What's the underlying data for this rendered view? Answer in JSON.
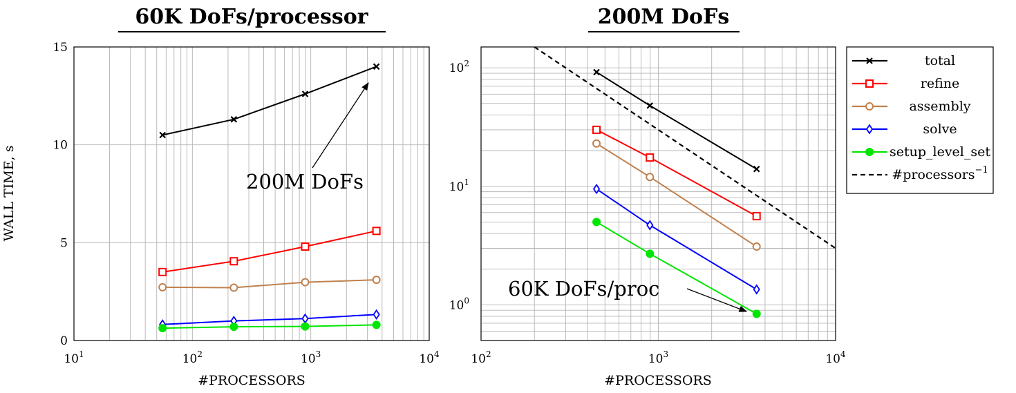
{
  "colors": {
    "total": "#000000",
    "refine": "#ff0000",
    "assembly": "#c0804d",
    "solve": "#0000ff",
    "setup_level_set": "#00e600",
    "reference": "#000000",
    "grid": "#b3b3b3"
  },
  "legend": {
    "placement": "right",
    "entries": [
      {
        "label": "total",
        "series": "total",
        "marker": "x",
        "dash": false
      },
      {
        "label": "refine",
        "series": "refine",
        "marker": "square",
        "dash": false
      },
      {
        "label": "assembly",
        "series": "assembly",
        "marker": "circle",
        "dash": false
      },
      {
        "label": "solve",
        "series": "solve",
        "marker": "diamond",
        "dash": false
      },
      {
        "label": "setup_level_set",
        "series": "setup_level_set",
        "marker": "dot",
        "dash": false
      },
      {
        "label": "#processors",
        "sup": "−1",
        "series": "reference",
        "marker": "none",
        "dash": true
      }
    ]
  },
  "chart_data": [
    {
      "type": "line",
      "title": "60K DoFs/processor",
      "xlabel": "#PROCESSORS",
      "ylabel": "WALL TIME, s",
      "xscale": "log",
      "yscale": "linear",
      "xlim": [
        10,
        10000
      ],
      "ylim": [
        0,
        15
      ],
      "grid": true,
      "x_ticks": [
        {
          "base": "10",
          "exp": "1",
          "value": 10
        },
        {
          "base": "10",
          "exp": "2",
          "value": 100
        },
        {
          "base": "10",
          "exp": "3",
          "value": 1000
        },
        {
          "base": "10",
          "exp": "4",
          "value": 10000
        }
      ],
      "y_ticks": [
        {
          "label": "0",
          "value": 0
        },
        {
          "label": "5",
          "value": 5
        },
        {
          "label": "10",
          "value": 10
        },
        {
          "label": "15",
          "value": 15
        }
      ],
      "x": [
        56,
        224,
        896,
        3584
      ],
      "series": [
        {
          "name": "total",
          "values": [
            10.5,
            11.3,
            12.6,
            14.0
          ]
        },
        {
          "name": "refine",
          "values": [
            3.5,
            4.05,
            4.8,
            5.6
          ]
        },
        {
          "name": "assembly",
          "values": [
            2.72,
            2.7,
            2.98,
            3.1
          ]
        },
        {
          "name": "solve",
          "values": [
            0.82,
            1.0,
            1.12,
            1.33
          ]
        },
        {
          "name": "setup_level_set",
          "values": [
            0.63,
            0.7,
            0.72,
            0.8
          ]
        }
      ],
      "annotations": [
        {
          "text": "200M DoFs",
          "points_to": {
            "x": 3584,
            "y": 13.2
          }
        }
      ]
    },
    {
      "type": "line",
      "title": "200M DoFs",
      "xlabel": "#PROCESSORS",
      "ylabel": "",
      "xscale": "log",
      "yscale": "log",
      "xlim": [
        100,
        10000
      ],
      "ylim": [
        0.5,
        150
      ],
      "grid": true,
      "x_ticks": [
        {
          "base": "10",
          "exp": "2",
          "value": 100
        },
        {
          "base": "10",
          "exp": "3",
          "value": 1000
        },
        {
          "base": "10",
          "exp": "4",
          "value": 10000
        }
      ],
      "y_ticks": [
        {
          "base": "10",
          "exp": "0",
          "value": 1
        },
        {
          "base": "10",
          "exp": "1",
          "value": 10
        },
        {
          "base": "10",
          "exp": "2",
          "value": 100
        }
      ],
      "x": [
        448,
        896,
        3584
      ],
      "series": [
        {
          "name": "total",
          "values": [
            92,
            48,
            14
          ]
        },
        {
          "name": "refine",
          "values": [
            30,
            17.5,
            5.6
          ]
        },
        {
          "name": "assembly",
          "values": [
            23,
            12,
            3.1
          ]
        },
        {
          "name": "solve",
          "values": [
            9.5,
            4.7,
            1.35
          ]
        },
        {
          "name": "setup_level_set",
          "values": [
            5.0,
            2.7,
            0.84
          ]
        }
      ],
      "reference": {
        "name": "#processors^-1",
        "x": [
          200,
          10000
        ],
        "values": [
          150,
          3.0
        ]
      },
      "annotations": [
        {
          "text": "60K DoFs/proc",
          "points_to": {
            "x": 3300,
            "y": 0.87
          }
        }
      ]
    }
  ]
}
